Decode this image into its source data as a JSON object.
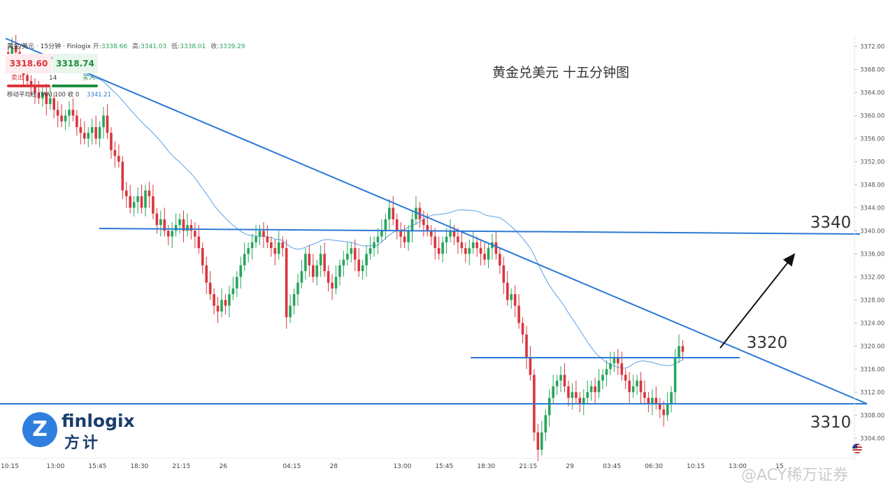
{
  "header": {
    "symbol": "黄金/美元 · 15分钟 · Finlogix",
    "open_label": "开:",
    "open": "3338.66",
    "high_label": "高:",
    "high": "3341.03",
    "low_label": "低:",
    "low": "3338.01",
    "close_label": "收:",
    "close": "3339.29"
  },
  "trade": {
    "sell_price": "3318.60",
    "buy_price": "3318.74",
    "sell_label": "卖出",
    "buy_label": "买入",
    "spread": "14"
  },
  "indicator": {
    "label": "移动平均线 (MA) 100 收 0",
    "value": "3341.21"
  },
  "logo": {
    "name_en": "finlogix",
    "name_cn": "方计",
    "mark": "Z"
  },
  "watermark": "@ACY稀万证券",
  "flag_icon": "us-flag-icon",
  "chart_data": {
    "type": "candlestick",
    "title": "黄金兑美元 十五分钟图",
    "y_ticks": [
      3304,
      3308,
      3312,
      3316,
      3320,
      3324,
      3328,
      3332,
      3336,
      3340,
      3344,
      3348,
      3352,
      3356,
      3360,
      3364,
      3368,
      3372
    ],
    "y_tick_labels": [
      "3304.00",
      "3308.00",
      "3312.00",
      "3316.00",
      "3320.00",
      "3324.00",
      "3328.00",
      "3332.00",
      "3336.00",
      "3340.00",
      "3344.00",
      "3348.00",
      "3352.00",
      "3356.00",
      "3360.00",
      "3364.00",
      "3368.00",
      "3372.00"
    ],
    "ylim": [
      3301,
      3374
    ],
    "x_labels": [
      "10:15",
      "13:00",
      "15:45",
      "18:30",
      "21:15",
      "26",
      "04:15",
      "28",
      "13:00",
      "15:45",
      "18:30",
      "21:15",
      "29",
      "03:45",
      "06:30",
      "10:15",
      "13:00",
      "15"
    ],
    "x_label_index": [
      0,
      12,
      23,
      34,
      45,
      56,
      74,
      85,
      103,
      114,
      125,
      136,
      147,
      158,
      169,
      180,
      191,
      202
    ],
    "up_color": "#26a65b",
    "down_color": "#d9363e",
    "closes": [
      3370,
      3372,
      3371,
      3369,
      3367,
      3366,
      3365,
      3364,
      3363,
      3364,
      3362,
      3363,
      3361,
      3360,
      3359,
      3360,
      3361,
      3360,
      3358,
      3357,
      3356,
      3357,
      3358,
      3356,
      3358,
      3360,
      3357,
      3354,
      3353,
      3352,
      3347,
      3346,
      3344,
      3345,
      3346,
      3344,
      3347,
      3346,
      3343,
      3341,
      3342,
      3340,
      3339,
      3340,
      3341,
      3342,
      3340,
      3341,
      3340,
      3339,
      3337,
      3334,
      3331,
      3329,
      3327,
      3326,
      3328,
      3327,
      3329,
      3330,
      3332,
      3334,
      3336,
      3337,
      3338,
      3339,
      3340,
      3339,
      3338,
      3337,
      3336,
      3338,
      3337,
      3325,
      3327,
      3329,
      3331,
      3333,
      3336,
      3334,
      3332,
      3334,
      3336,
      3333,
      3331,
      3330,
      3332,
      3334,
      3335,
      3336,
      3337,
      3335,
      3333,
      3334,
      3336,
      3337,
      3338,
      3339,
      3340,
      3342,
      3344,
      3342,
      3340,
      3339,
      3338,
      3340,
      3342,
      3344,
      3342,
      3341,
      3340,
      3339,
      3337,
      3336,
      3338,
      3339,
      3340,
      3339,
      3338,
      3337,
      3336,
      3337,
      3338,
      3337,
      3336,
      3335,
      3337,
      3338,
      3336,
      3334,
      3331,
      3328,
      3329,
      3327,
      3324,
      3322,
      3318,
      3315,
      3305,
      3302,
      3305,
      3308,
      3311,
      3313,
      3314,
      3315,
      3313,
      3311,
      3312,
      3311,
      3310,
      3311,
      3312,
      3313,
      3312,
      3314,
      3315,
      3316,
      3317,
      3318,
      3317,
      3315,
      3314,
      3312,
      3313,
      3314,
      3312,
      3311,
      3310,
      3311,
      3310,
      3309,
      3308,
      3310,
      3312,
      3318,
      3320,
      3319
    ]
  },
  "annotations": [
    {
      "text": "3340",
      "value": 3340
    },
    {
      "text": "3320",
      "value": 3320
    },
    {
      "text": "3310",
      "value": 3310
    }
  ]
}
